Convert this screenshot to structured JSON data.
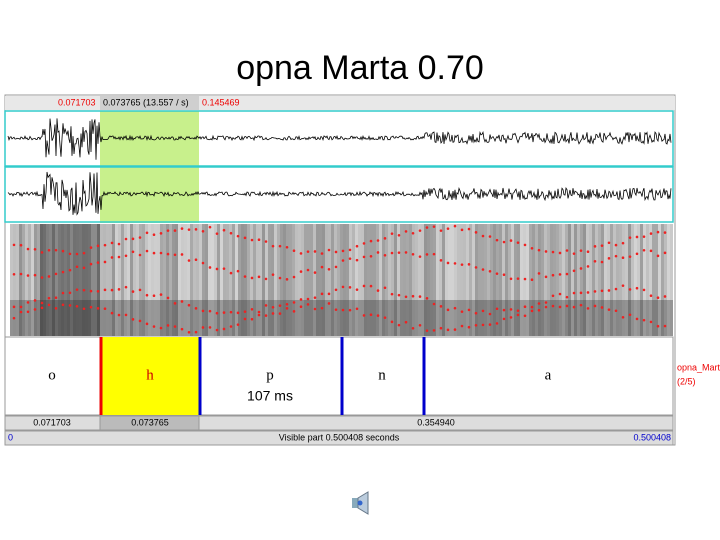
{
  "title": "opna Marta 0.70",
  "selection": {
    "start": "0.071703",
    "duration": "0.073765 (13.557 / s)",
    "end": "0.145469"
  },
  "tier": {
    "intervals": [
      "o",
      "h",
      "p",
      "n",
      "a"
    ],
    "duration_label": "107 ms",
    "name": "opna_Marta",
    "index": "(2/5)"
  },
  "bottom": {
    "left": "0.071703",
    "selected": "0.073765",
    "right": "0.354940",
    "start": "0",
    "visible": "Visible part 0.500408 seconds",
    "end": "0.500408"
  }
}
